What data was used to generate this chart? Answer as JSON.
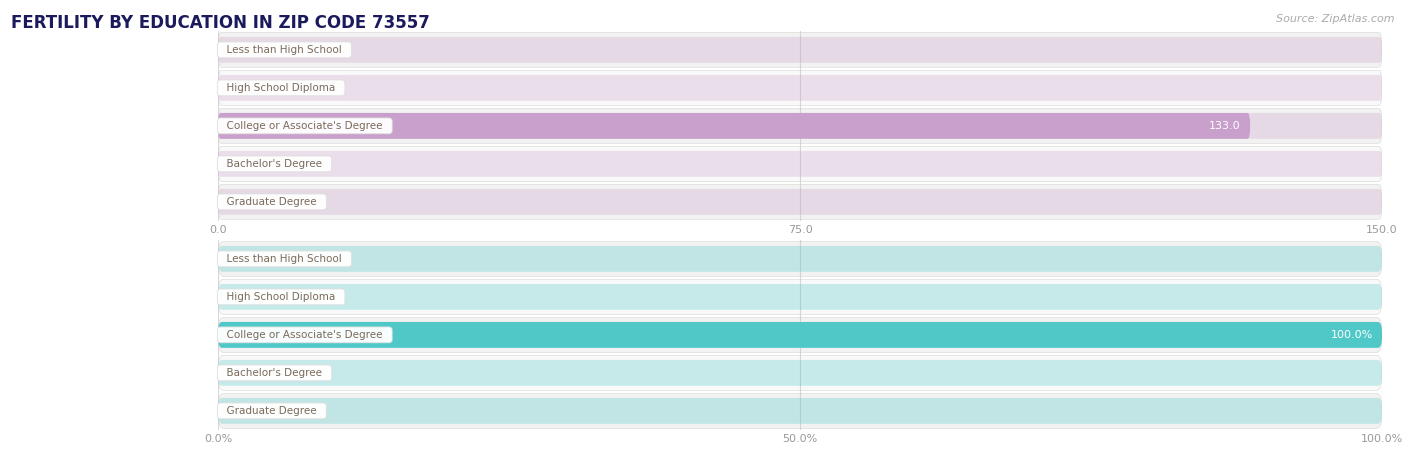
{
  "title": "FERTILITY BY EDUCATION IN ZIP CODE 73557",
  "source": "Source: ZipAtlas.com",
  "categories": [
    "Less than High School",
    "High School Diploma",
    "College or Associate's Degree",
    "Bachelor's Degree",
    "Graduate Degree"
  ],
  "values_abs": [
    0.0,
    0.0,
    133.0,
    0.0,
    0.0
  ],
  "values_pct": [
    0.0,
    0.0,
    100.0,
    0.0,
    0.0
  ],
  "xlim_abs": [
    0.0,
    150.0
  ],
  "xlim_pct": [
    0.0,
    100.0
  ],
  "xticks_abs": [
    0.0,
    75.0,
    150.0
  ],
  "xticks_pct": [
    0.0,
    50.0,
    100.0
  ],
  "xticklabels_abs": [
    "0.0",
    "75.0",
    "150.0"
  ],
  "xticklabels_pct": [
    "0.0%",
    "50.0%",
    "100.0%"
  ],
  "bar_color_purple": "#c9a0cc",
  "bar_color_teal": "#50c8c8",
  "label_text_color": "#7a6a5a",
  "value_label_inside": "#ffffff",
  "value_label_outside": "#999999",
  "title_color": "#1a1a5c",
  "source_color": "#aaaaaa",
  "row_bg_even": "#f2f2f2",
  "row_bg_odd": "#f9f9f9",
  "grid_color": "#cccccc",
  "background_color": "#ffffff",
  "pill_border_color": "#dddddd"
}
